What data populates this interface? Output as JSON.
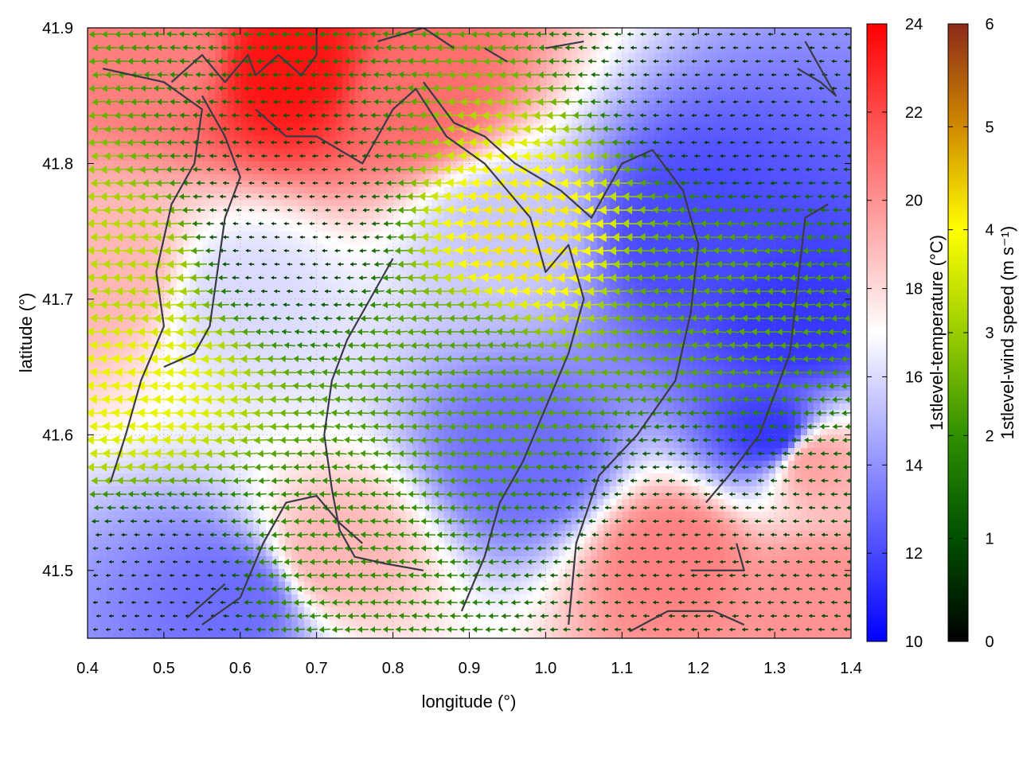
{
  "chart_data": {
    "type": "heatmap",
    "title": "",
    "xlabel": "longitude (°)",
    "ylabel": "latitude (°)",
    "xlim": [
      0.4,
      1.4
    ],
    "ylim": [
      41.45,
      41.9
    ],
    "x_ticks": [
      "0.4",
      "0.5",
      "0.6",
      "0.7",
      "0.8",
      "0.9",
      "1.0",
      "1.1",
      "1.2",
      "1.3",
      "1.4"
    ],
    "y_ticks": [
      "41.5",
      "41.6",
      "41.7",
      "41.8",
      "41.9"
    ],
    "grid": true,
    "layers": [
      {
        "kind": "heatmap",
        "variable": "1stlevel-temperature",
        "colorbar_label": "1stlevel-temperature (°C)",
        "range": [
          10,
          24
        ],
        "colorbar_ticks": [
          "10",
          "12",
          "14",
          "16",
          "18",
          "20",
          "22",
          "24"
        ],
        "palette": [
          "#0000ff",
          "#ffffff",
          "#ff0000"
        ],
        "field_approx": [
          {
            "lon": 0.66,
            "lat": 41.87,
            "value": 23.5
          },
          {
            "lon": 0.5,
            "lat": 41.88,
            "value": 20.5
          },
          {
            "lon": 0.83,
            "lat": 41.85,
            "value": 21.0
          },
          {
            "lon": 0.43,
            "lat": 41.72,
            "value": 19.0
          },
          {
            "lon": 0.6,
            "lat": 41.7,
            "value": 16.0
          },
          {
            "lon": 0.95,
            "lat": 41.75,
            "value": 15.5
          },
          {
            "lon": 0.98,
            "lat": 41.58,
            "value": 13.0
          },
          {
            "lon": 1.18,
            "lat": 41.75,
            "value": 12.0
          },
          {
            "lon": 1.33,
            "lat": 41.68,
            "value": 11.5
          },
          {
            "lon": 1.3,
            "lat": 41.6,
            "value": 11.5
          },
          {
            "lon": 0.6,
            "lat": 41.48,
            "value": 13.0
          },
          {
            "lon": 1.17,
            "lat": 41.51,
            "value": 20.5
          },
          {
            "lon": 1.36,
            "lat": 41.48,
            "value": 20.0
          },
          {
            "lon": 1.35,
            "lat": 41.58,
            "value": 19.5
          },
          {
            "lon": 0.72,
            "lat": 41.51,
            "value": 19.0
          }
        ]
      },
      {
        "kind": "vector",
        "variable": "1stlevel-wind speed",
        "colorbar_label": "1stlevel-wind speed (m s⁻¹)",
        "range": [
          0,
          6
        ],
        "colorbar_ticks": [
          "0",
          "1",
          "2",
          "3",
          "4",
          "5",
          "6"
        ],
        "palette": [
          "#000000",
          "#005000",
          "#2f8f00",
          "#9acd00",
          "#ffff00",
          "#d08a00",
          "#8b2a1a"
        ],
        "dominant_direction": "from east (arrows pointing west)",
        "field_approx": [
          {
            "lon": 0.98,
            "lat": 41.74,
            "speed": 4.2
          },
          {
            "lon": 0.47,
            "lat": 41.64,
            "speed": 3.8
          },
          {
            "lon": 0.45,
            "lat": 41.72,
            "speed": 3.3
          },
          {
            "lon": 0.9,
            "lat": 41.65,
            "speed": 2.3
          },
          {
            "lon": 0.65,
            "lat": 41.75,
            "speed": 0.6
          },
          {
            "lon": 1.25,
            "lat": 41.85,
            "speed": 0.6
          },
          {
            "lon": 1.2,
            "lat": 41.7,
            "speed": 2.4
          },
          {
            "lon": 0.7,
            "lat": 41.5,
            "speed": 2.0
          },
          {
            "lon": 1.2,
            "lat": 41.52,
            "speed": 0.8
          },
          {
            "lon": 0.5,
            "lat": 41.48,
            "speed": 0.5
          }
        ]
      }
    ],
    "boundary_lines": [
      [
        [
          0.42,
          41.87
        ],
        [
          0.5,
          41.86
        ],
        [
          0.55,
          41.84
        ],
        [
          0.54,
          41.8
        ],
        [
          0.51,
          41.77
        ],
        [
          0.49,
          41.72
        ],
        [
          0.5,
          41.68
        ],
        [
          0.47,
          41.64
        ],
        [
          0.45,
          41.6
        ],
        [
          0.43,
          41.565
        ]
      ],
      [
        [
          0.51,
          41.86
        ],
        [
          0.55,
          41.88
        ],
        [
          0.58,
          41.86
        ],
        [
          0.61,
          41.88
        ],
        [
          0.62,
          41.865
        ],
        [
          0.65,
          41.88
        ],
        [
          0.68,
          41.865
        ],
        [
          0.7,
          41.88
        ],
        [
          0.7,
          41.9
        ]
      ],
      [
        [
          0.62,
          41.84
        ],
        [
          0.66,
          41.82
        ],
        [
          0.7,
          41.82
        ],
        [
          0.76,
          41.8
        ],
        [
          0.8,
          41.84
        ],
        [
          0.83,
          41.855
        ],
        [
          0.87,
          41.82
        ],
        [
          0.92,
          41.8
        ],
        [
          0.95,
          41.78
        ],
        [
          0.98,
          41.76
        ],
        [
          1.0,
          41.72
        ],
        [
          1.03,
          41.74
        ],
        [
          1.05,
          41.7
        ],
        [
          1.03,
          41.66
        ],
        [
          1.0,
          41.62
        ],
        [
          0.97,
          41.58
        ],
        [
          0.94,
          41.55
        ],
        [
          0.92,
          41.51
        ],
        [
          0.89,
          41.47
        ]
      ],
      [
        [
          0.55,
          41.85
        ],
        [
          0.58,
          41.82
        ],
        [
          0.6,
          41.79
        ],
        [
          0.58,
          41.76
        ],
        [
          0.57,
          41.72
        ],
        [
          0.56,
          41.68
        ],
        [
          0.54,
          41.66
        ],
        [
          0.5,
          41.65
        ]
      ],
      [
        [
          0.8,
          41.73
        ],
        [
          0.77,
          41.7
        ],
        [
          0.74,
          41.67
        ],
        [
          0.72,
          41.64
        ],
        [
          0.71,
          41.6
        ],
        [
          0.72,
          41.56
        ],
        [
          0.73,
          41.53
        ],
        [
          0.75,
          41.51
        ],
        [
          0.79,
          41.505
        ],
        [
          0.84,
          41.5
        ]
      ],
      [
        [
          0.55,
          41.46
        ],
        [
          0.6,
          41.48
        ],
        [
          0.63,
          41.52
        ],
        [
          0.66,
          41.55
        ],
        [
          0.7,
          41.555
        ],
        [
          0.73,
          41.535
        ],
        [
          0.76,
          41.52
        ]
      ],
      [
        [
          0.84,
          41.86
        ],
        [
          0.88,
          41.83
        ],
        [
          0.92,
          41.82
        ],
        [
          0.96,
          41.8
        ],
        [
          1.02,
          41.78
        ],
        [
          1.06,
          41.76
        ],
        [
          1.1,
          41.8
        ],
        [
          1.14,
          41.81
        ],
        [
          1.18,
          41.78
        ],
        [
          1.2,
          41.74
        ],
        [
          1.19,
          41.69
        ],
        [
          1.17,
          41.64
        ],
        [
          1.12,
          41.6
        ],
        [
          1.07,
          41.57
        ],
        [
          1.04,
          41.52
        ],
        [
          1.03,
          41.46
        ]
      ],
      [
        [
          1.37,
          41.77
        ],
        [
          1.34,
          41.76
        ],
        [
          1.33,
          41.71
        ],
        [
          1.32,
          41.66
        ],
        [
          1.3,
          41.63
        ],
        [
          1.28,
          41.6
        ],
        [
          1.24,
          41.57
        ],
        [
          1.21,
          41.55
        ]
      ],
      [
        [
          1.11,
          41.455
        ],
        [
          1.16,
          41.47
        ],
        [
          1.22,
          41.47
        ],
        [
          1.26,
          41.46
        ]
      ],
      [
        [
          1.25,
          41.52
        ],
        [
          1.26,
          41.5
        ],
        [
          1.22,
          41.5
        ],
        [
          1.19,
          41.5
        ]
      ],
      [
        [
          1.33,
          41.87
        ],
        [
          1.36,
          41.86
        ],
        [
          1.38,
          41.85
        ],
        [
          1.34,
          41.89
        ]
      ],
      [
        [
          0.78,
          41.89
        ],
        [
          0.84,
          41.9
        ],
        [
          0.88,
          41.885
        ]
      ],
      [
        [
          0.92,
          41.885
        ],
        [
          0.95,
          41.875
        ]
      ],
      [
        [
          1.0,
          41.885
        ],
        [
          1.05,
          41.89
        ]
      ],
      [
        [
          0.53,
          41.465
        ],
        [
          0.58,
          41.49
        ]
      ]
    ]
  }
}
